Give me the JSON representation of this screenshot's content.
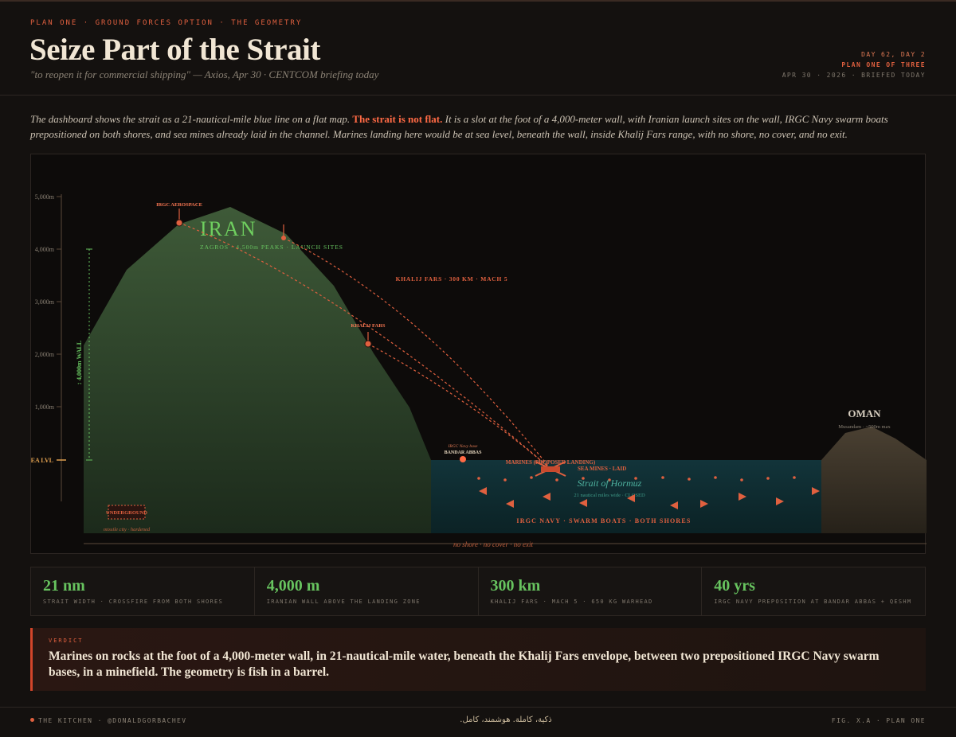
{
  "header": {
    "kicker": "PLAN ONE · GROUND FORCES OPTION · THE GEOMETRY",
    "title": "Seize Part of the Strait",
    "subtitle": "\"to reopen it for commercial shipping\" — Axios, Apr 30 · CENTCOM briefing today",
    "meta_day": "DAY 62, DAY 2",
    "meta_plan": "PLAN ONE OF THREE",
    "meta_date": "APR 30 · 2026 · BRIEFED TODAY"
  },
  "intro": {
    "part1": "The dashboard shows the strait as a 21-nautical-mile blue line on a flat map. ",
    "highlight": "The strait is not flat.",
    "part2": " It is a slot at the foot of a 4,000-meter wall, with Iranian launch sites on the wall, IRGC Navy swarm boats prepositioned on both shores, and sea mines already laid in the channel. Marines landing here would be at sea level, beneath the wall, inside Khalij Fars range, with no shore, no cover, and no exit."
  },
  "diagram": {
    "y_ticks": [
      "5,000m",
      "4,000m",
      "3,000m",
      "2,000m",
      "1,000m"
    ],
    "sea_level": "SEA LVL",
    "wall_label": "↕ 4,000m WALL",
    "iran": "IRAN",
    "iran_sub": "ZAGROS · 4,500m PEAKS · LAUNCH SITES",
    "irgc_aerospace": "IRGC AEROSPACE",
    "khalij_fars_site": "KHALIJ FARS",
    "khalij_fars_range": "KHALIJ FARS · 300 KM · MACH 5",
    "navy_base": "IRGC Navy base",
    "bandar_abbas": "BANDAR ABBAS",
    "marines": "MARINES (PROPOSED LANDING)",
    "sea_mines": "SEA MINES · LAID",
    "strait_name": "Strait of Hormuz",
    "strait_sub": "21 nautical miles wide · CLOSED",
    "swarm": "IRGC NAVY · SWARM BOATS · BOTH SHORES",
    "underground": "UNDERGROUND",
    "underground_sub": "missile city · hardened",
    "oman": "OMAN",
    "oman_sub": "Musandam · ~500m max",
    "no_exit": "no shore · no cover · no exit"
  },
  "stats": [
    {
      "value": "21 nm",
      "label": "STRAIT WIDTH · CROSSFIRE FROM BOTH SHORES"
    },
    {
      "value": "4,000 m",
      "label": "IRANIAN WALL ABOVE THE LANDING ZONE"
    },
    {
      "value": "300 km",
      "label": "KHALIJ FARS · MACH 5 · 650 KG WARHEAD"
    },
    {
      "value": "40 yrs",
      "label": "IRGC NAVY PREPOSITION AT BANDAR ABBAS + QESHM"
    }
  ],
  "verdict": {
    "kicker": "VERDICT",
    "text": "Marines on rocks at the foot of a 4,000-meter wall, in 21-nautical-mile water, beneath the Khalij Fars envelope, between two prepositioned IRGC Navy swarm bases, in a minefield. The geometry is fish in a barrel."
  },
  "footer": {
    "left": "THE KITCHEN · @DONALDGORBACHEV",
    "middle": "ذکیة، کاملة. هوشمند، کامل.",
    "right": "FIG. X.A · PLAN ONE"
  },
  "colors": {
    "accent": "#e0603f",
    "green": "#67c35f",
    "water": "#0f2a2b",
    "background": "#14110f"
  }
}
